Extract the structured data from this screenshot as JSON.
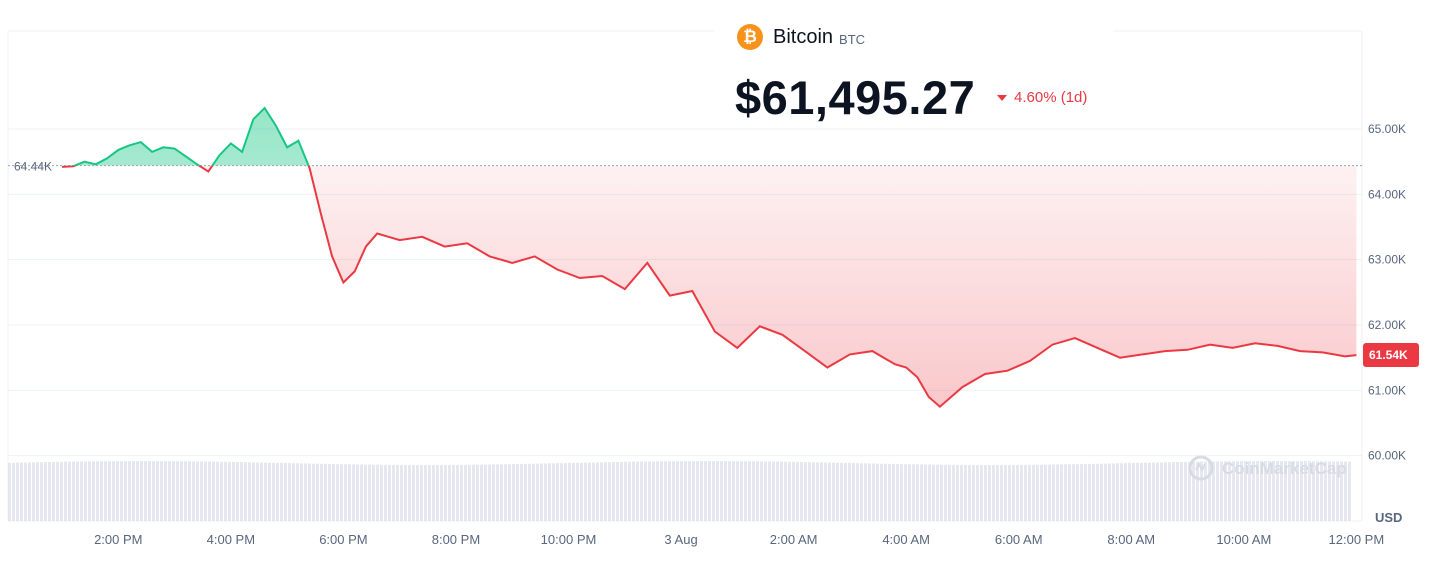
{
  "coin": {
    "name": "Bitcoin",
    "symbol": "BTC",
    "price": "$61,495.27",
    "change": "4.60% (1d)",
    "logo_glyph": "₿"
  },
  "watermark": "CoinMarketCap",
  "colors": {
    "up": "#16c784",
    "down": "#ea3943",
    "grid": "#eff2f5",
    "axis_text": "#58667e",
    "volume": "#cfd6e4"
  },
  "chart_data": {
    "type": "area",
    "currency": "USD",
    "open_value": 64440,
    "open_label": "64.44K",
    "last_label": "61.54K",
    "ylim": [
      59000,
      66500
    ],
    "y_ticks": [
      60000,
      61000,
      62000,
      63000,
      64000,
      65000
    ],
    "y_tick_labels": [
      "60.00K",
      "61.00K",
      "62.00K",
      "63.00K",
      "64.00K",
      "65.00K"
    ],
    "x_ticks": [
      1,
      2,
      3,
      4,
      5,
      6,
      7,
      8,
      9,
      10,
      11,
      12
    ],
    "x_tick_labels": [
      "2:00 PM",
      "4:00 PM",
      "6:00 PM",
      "8:00 PM",
      "10:00 PM",
      "3 Aug",
      "2:00 AM",
      "4:00 AM",
      "6:00 AM",
      "8:00 AM",
      "10:00 AM",
      "12:00 PM"
    ],
    "xlim": [
      0.02,
      12.05
    ],
    "series": [
      {
        "x": [
          0.5,
          0.6,
          0.7,
          0.8,
          0.9,
          1.0,
          1.1,
          1.2,
          1.3,
          1.4,
          1.5,
          1.6,
          1.7,
          1.8,
          1.9,
          2.0,
          2.1,
          2.2,
          2.3,
          2.4,
          2.5,
          2.6,
          2.7,
          2.8,
          2.9,
          3.0,
          3.1,
          3.2,
          3.3,
          3.5,
          3.7,
          3.9,
          4.1,
          4.3,
          4.5,
          4.7,
          4.9,
          5.1,
          5.3,
          5.5,
          5.7,
          5.9,
          6.1,
          6.3,
          6.5,
          6.7,
          6.9,
          7.1,
          7.3,
          7.5,
          7.7,
          7.8,
          7.9,
          8.0,
          8.1,
          8.2,
          8.3,
          8.5,
          8.7,
          8.9,
          9.1,
          9.3,
          9.5,
          9.7,
          9.9,
          10.1,
          10.3,
          10.5,
          10.7,
          10.9,
          11.1,
          11.3,
          11.5,
          11.7,
          11.9,
          12.0
        ],
        "y": [
          64420,
          64430,
          64500,
          64460,
          64550,
          64680,
          64750,
          64800,
          64650,
          64720,
          64700,
          64580,
          64460,
          64350,
          64600,
          64780,
          64650,
          65150,
          65320,
          65050,
          64720,
          64820,
          64400,
          63700,
          63050,
          62650,
          62820,
          63200,
          63400,
          63300,
          63350,
          63200,
          63250,
          63050,
          62950,
          63050,
          62850,
          62720,
          62750,
          62550,
          62950,
          62450,
          62520,
          61900,
          61650,
          61980,
          61850,
          61600,
          61350,
          61550,
          61600,
          61500,
          61400,
          61350,
          61200,
          60900,
          60750,
          61050,
          61250,
          61300,
          61450,
          61700,
          61800,
          61650,
          61500,
          61550,
          61600,
          61620,
          61700,
          61650,
          61720,
          61680,
          61600,
          61580,
          61520,
          61540
        ]
      }
    ],
    "volume_level": 0.95
  }
}
